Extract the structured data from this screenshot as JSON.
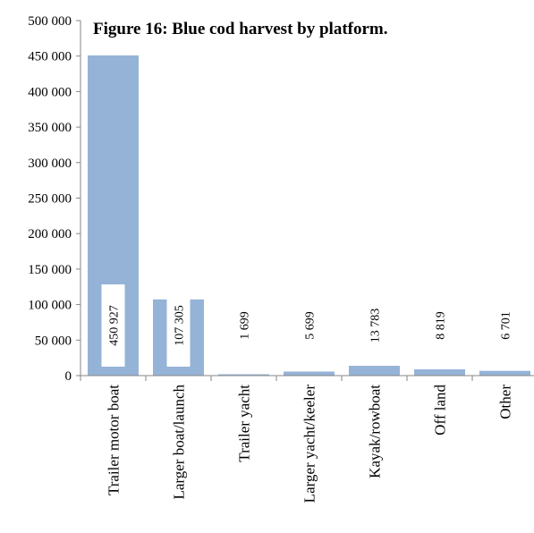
{
  "chart_data": {
    "type": "bar",
    "title": "Figure 16: Blue cod harvest by platform.",
    "xlabel": "",
    "ylabel": "",
    "ylim": [
      0,
      500000
    ],
    "yticks": [
      0,
      50000,
      100000,
      150000,
      200000,
      250000,
      300000,
      350000,
      400000,
      450000,
      500000
    ],
    "ytick_labels": [
      "0",
      "50 000",
      "100 000",
      "150 000",
      "200 000",
      "250 000",
      "300 000",
      "350 000",
      "400 000",
      "450 000",
      "500 000"
    ],
    "categories": [
      "Trailer motor boat",
      "Larger boat/launch",
      "Trailer yacht",
      "Larger yacht/keeler",
      "Kayak/rowboat",
      "Off land",
      "Other"
    ],
    "values": [
      450927,
      107305,
      1699,
      5699,
      13783,
      8819,
      6701
    ],
    "data_labels": [
      "450 927",
      "107 305",
      "1 699",
      "5 699",
      "13 783",
      "8 819",
      "6 701"
    ],
    "bar_color": "#95B3D7",
    "grid": false,
    "legend": "none"
  }
}
